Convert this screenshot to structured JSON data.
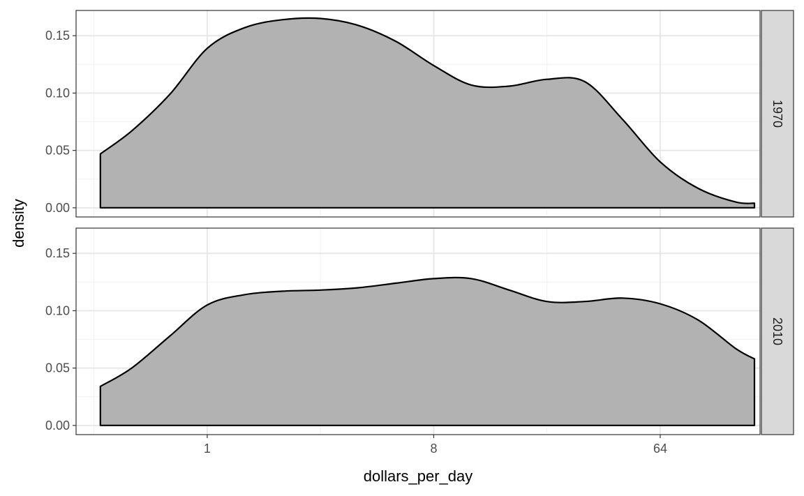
{
  "chart_data": {
    "type": "area",
    "xlabel": "dollars_per_day",
    "ylabel": "density",
    "x_scale": "log2",
    "x_ticks": [
      1,
      8,
      64
    ],
    "x_tick_labels": [
      "1",
      "8",
      "64"
    ],
    "xlim": [
      0.3,
      160
    ],
    "y_ticks": [
      0,
      0.05,
      0.1,
      0.15
    ],
    "y_tick_labels": [
      "0.00",
      "0.05",
      "0.10",
      "0.15"
    ],
    "ylim": [
      -0.008,
      0.172
    ],
    "grid": true,
    "fill_color": "#b2b2b2",
    "strip_fill": "#d9d9d9",
    "facets": [
      {
        "label": "1970",
        "x": [
          0.375,
          0.5,
          0.71,
          1.0,
          1.41,
          2.0,
          2.83,
          4.0,
          5.66,
          8.0,
          11.3,
          16.0,
          22.6,
          32.0,
          45.3,
          64.0,
          90.5,
          128.0,
          152.0
        ],
        "y": [
          0.047,
          0.067,
          0.099,
          0.139,
          0.157,
          0.164,
          0.165,
          0.159,
          0.145,
          0.124,
          0.107,
          0.106,
          0.112,
          0.11,
          0.077,
          0.04,
          0.017,
          0.005,
          0.004
        ]
      },
      {
        "label": "2010",
        "x": [
          0.375,
          0.5,
          0.71,
          1.0,
          1.41,
          2.0,
          2.83,
          4.0,
          5.66,
          8.0,
          11.3,
          16.0,
          22.6,
          32.0,
          45.3,
          64.0,
          90.5,
          128.0,
          152.0
        ],
        "y": [
          0.034,
          0.05,
          0.078,
          0.105,
          0.114,
          0.117,
          0.118,
          0.12,
          0.124,
          0.128,
          0.128,
          0.118,
          0.108,
          0.108,
          0.111,
          0.106,
          0.092,
          0.067,
          0.058
        ]
      }
    ]
  }
}
